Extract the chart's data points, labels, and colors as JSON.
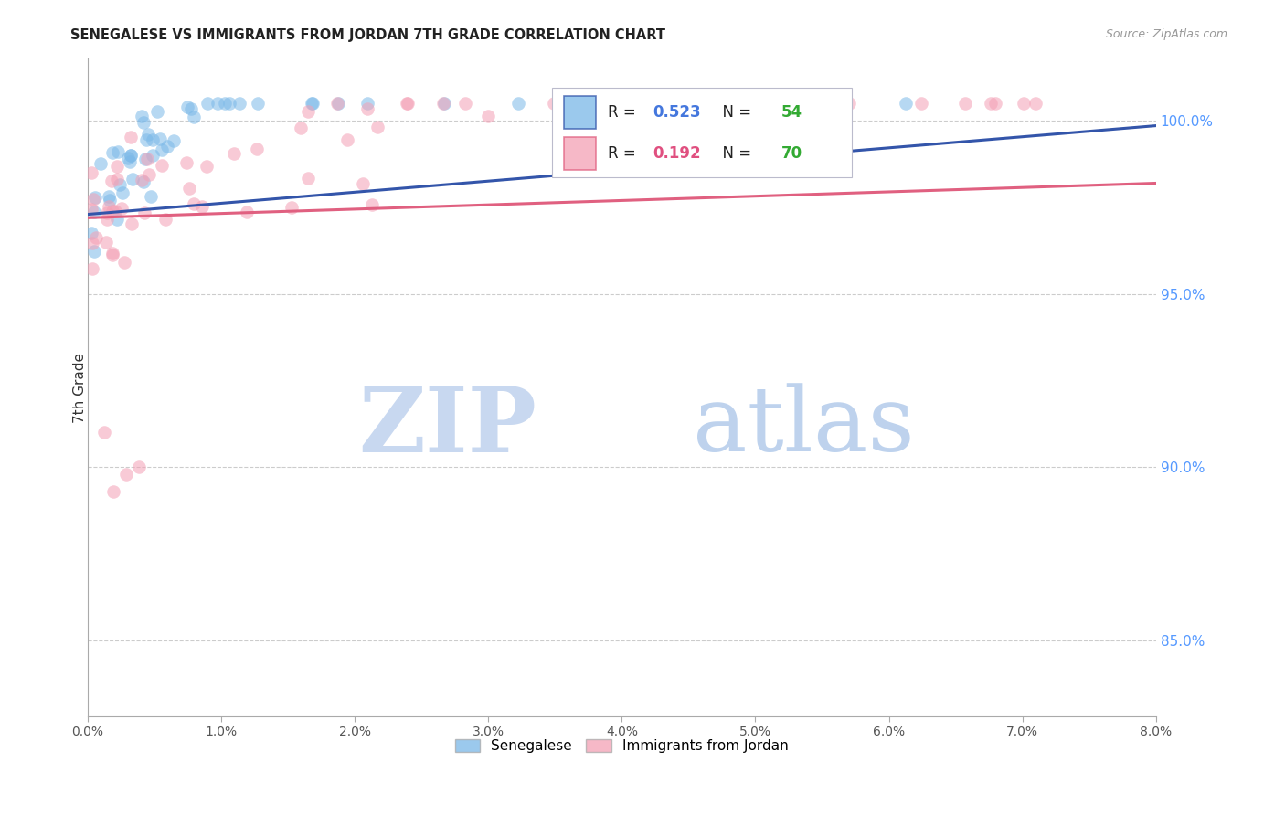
{
  "title": "SENEGALESE VS IMMIGRANTS FROM JORDAN 7TH GRADE CORRELATION CHART",
  "source": "Source: ZipAtlas.com",
  "ylabel": "7th Grade",
  "ytick_labels": [
    "85.0%",
    "90.0%",
    "95.0%",
    "100.0%"
  ],
  "ytick_values": [
    0.85,
    0.9,
    0.95,
    1.0
  ],
  "xmin": 0.0,
  "xmax": 0.08,
  "ymin": 0.828,
  "ymax": 1.018,
  "background_color": "#ffffff",
  "grid_color": "#cccccc",
  "senegalese_color": "#7ab8e8",
  "jordan_color": "#f4a0b5",
  "blue_line_color": "#3355aa",
  "pink_line_color": "#e06080",
  "sen_r": 0.523,
  "sen_n": 54,
  "jor_r": 0.192,
  "jor_n": 70,
  "sen_label": "Senegalese",
  "jor_label": "Immigrants from Jordan",
  "r_color_blue": "#4477dd",
  "r_color_pink": "#e05080",
  "n_color": "#33aa33",
  "watermark_zip_color": "#c8d8f0",
  "watermark_atlas_color": "#a8c4e8"
}
